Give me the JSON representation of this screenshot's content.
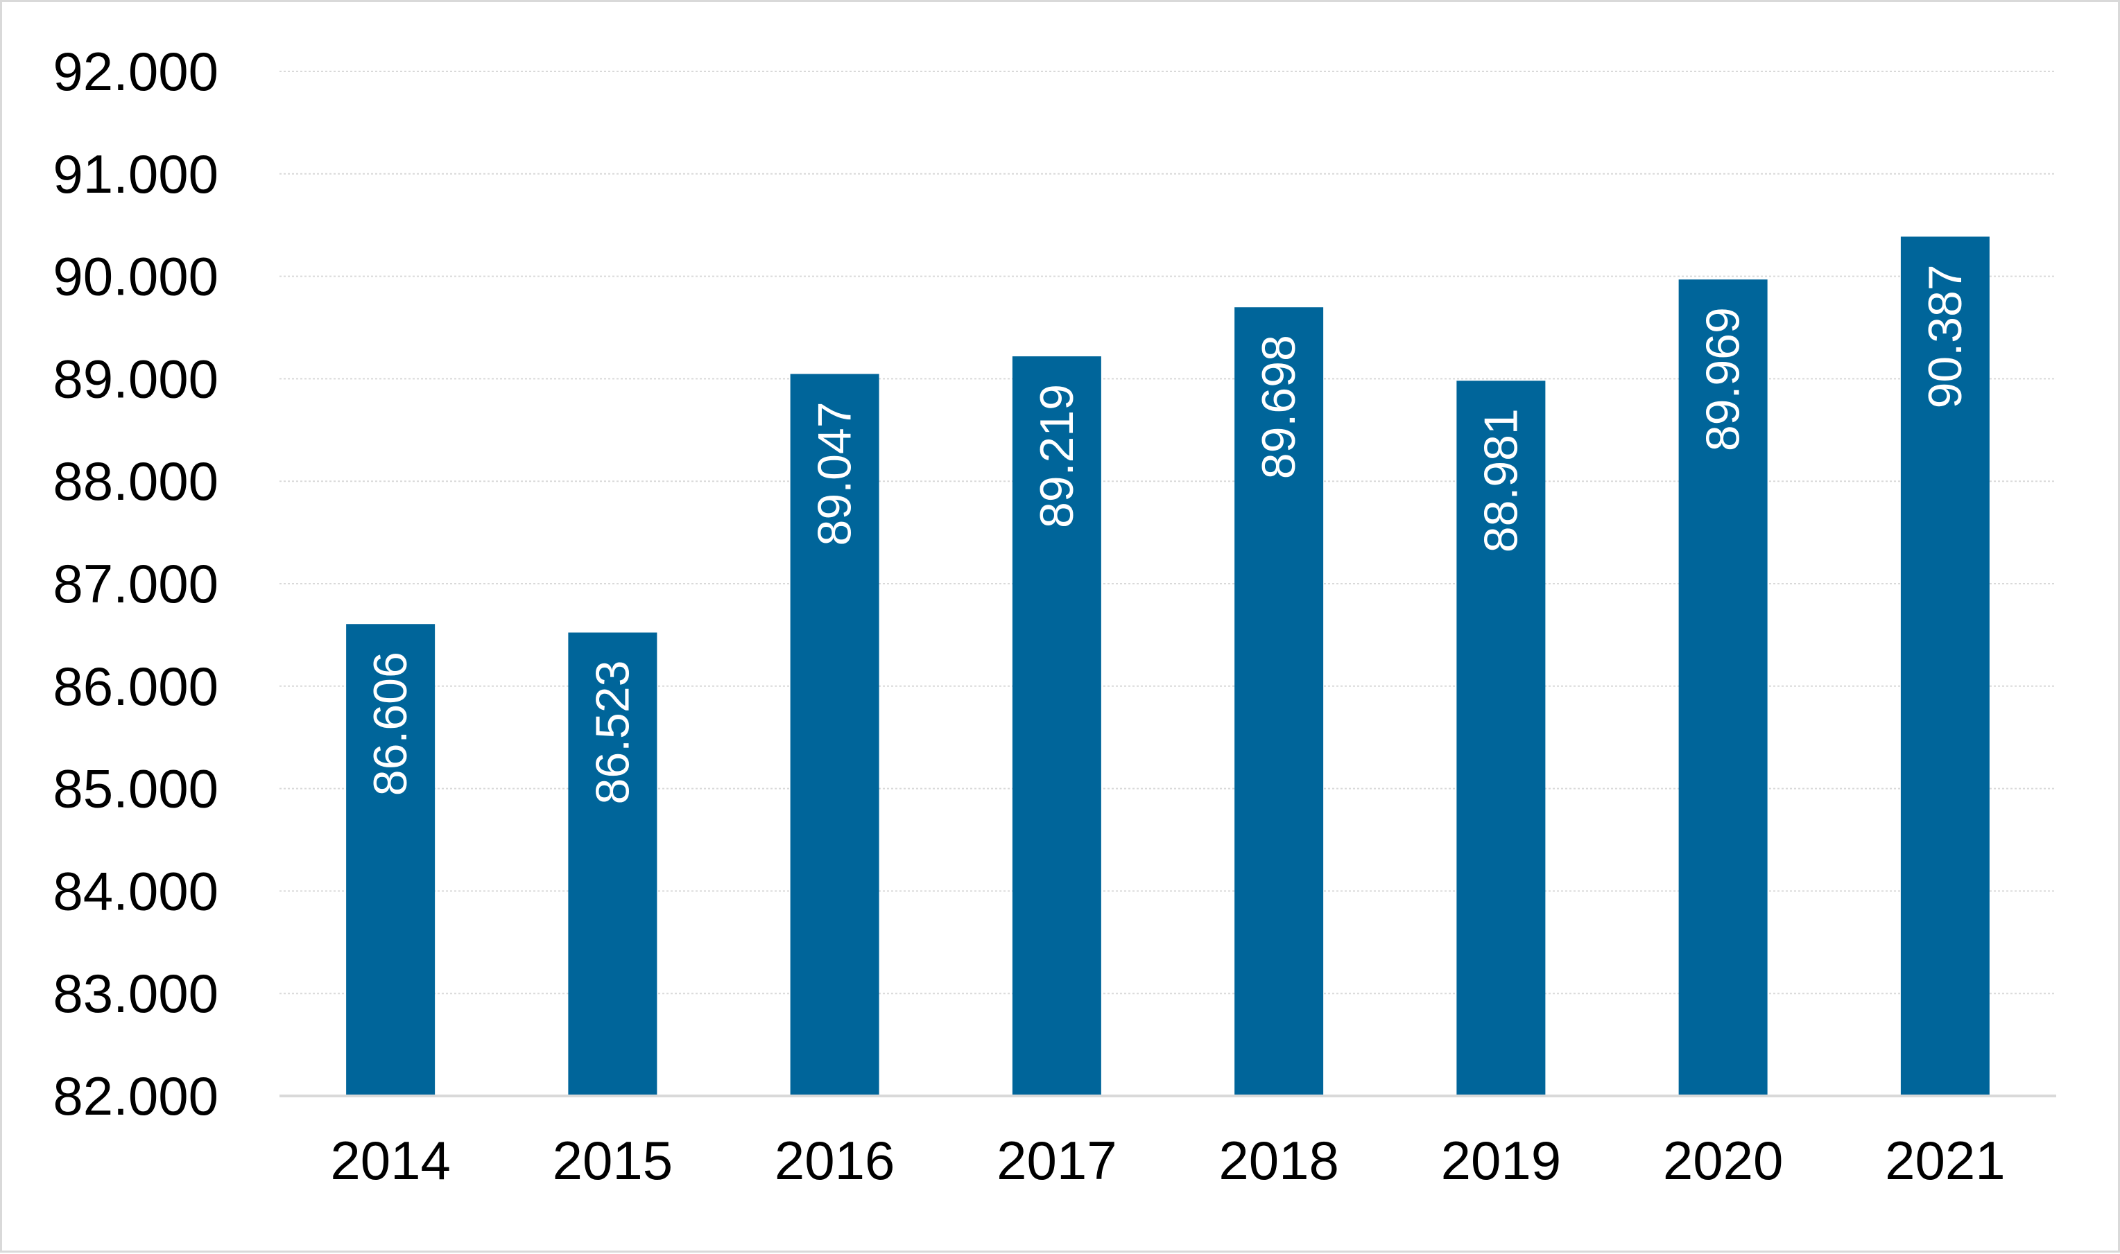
{
  "chart_data": {
    "type": "bar",
    "categories": [
      "2014",
      "2015",
      "2016",
      "2017",
      "2018",
      "2019",
      "2020",
      "2021"
    ],
    "values": [
      86606,
      86523,
      89047,
      89219,
      89698,
      88981,
      89969,
      90387
    ],
    "data_labels": [
      "86.606",
      "86.523",
      "89.047",
      "89.219",
      "89.698",
      "88.981",
      "89.969",
      "90.387"
    ],
    "ylim": [
      82000,
      92000
    ],
    "y_ticks": [
      {
        "value": 82000,
        "label": "82.000"
      },
      {
        "value": 83000,
        "label": "83.000"
      },
      {
        "value": 84000,
        "label": "84.000"
      },
      {
        "value": 85000,
        "label": "85.000"
      },
      {
        "value": 86000,
        "label": "86.000"
      },
      {
        "value": 87000,
        "label": "87.000"
      },
      {
        "value": 88000,
        "label": "88.000"
      },
      {
        "value": 89000,
        "label": "89.000"
      },
      {
        "value": 90000,
        "label": "90.000"
      },
      {
        "value": 91000,
        "label": "91.000"
      },
      {
        "value": 92000,
        "label": "92.000"
      }
    ],
    "grid": true,
    "legend": "none",
    "data_label_orientation": "vertical",
    "colors": {
      "bar": "#00659a",
      "gridline": "#d9d9d9",
      "axis": "#d9d9d9",
      "frame": "#d9d9d9",
      "data_label": "#ffffff",
      "tick_label": "#000000"
    }
  }
}
